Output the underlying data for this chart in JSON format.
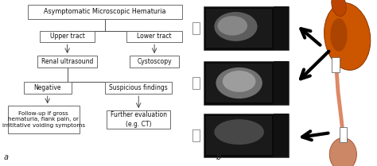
{
  "bg_color": "#ffffff",
  "box_color": "#ffffff",
  "box_edge": "#555555",
  "text_color": "#111111",
  "label_a": "a",
  "label_b": "b",
  "flowchart": {
    "title": "Asymptomatic Microscopic Hematuria",
    "node_upper": "Upper tract",
    "node_lower": "Lower tract",
    "node_renal": "Renal ultrasound",
    "node_cysto": "Cystoscopy",
    "node_neg": "Negative",
    "node_susp": "Suspicious findings",
    "node_followup": "Follow-up if gross\nhematuria, flank pain, or\nirrititative voiding symptoms",
    "node_further": "Further evaluation\n(e.g. CT)"
  },
  "kidney_color": "#cc5500",
  "kidney_edge": "#883300",
  "ureter_color": "#dd8866",
  "bladder_color": "#cc8866",
  "bladder_edge": "#aa5533",
  "arrow_color": "#111111"
}
